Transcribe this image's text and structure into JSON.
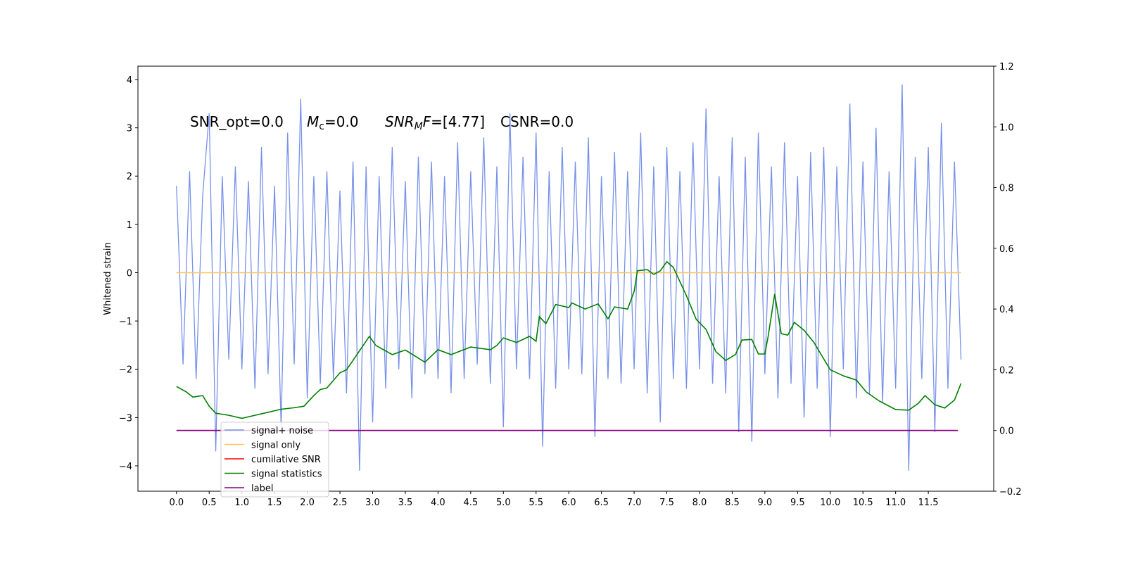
{
  "chart_data": {
    "type": "line",
    "ylabel": "Whitened strain",
    "annotations": [
      [
        "SNR_opt=0.0"
      ],
      [
        "M",
        "c",
        "=0.0"
      ],
      [
        "SNR",
        "M",
        "F",
        "=[4.77]"
      ],
      [
        "CSNR=0.0"
      ]
    ],
    "xlim": [
      -0.59,
      12.5
    ],
    "ylim": [
      -4.525,
      4.277
    ],
    "y2lim": [
      -0.2,
      1.2
    ],
    "xticks": [
      {
        "value": 0,
        "label": "0.0"
      },
      0.5,
      {
        "value": 1,
        "label": "1.0"
      },
      1.5,
      {
        "value": 2,
        "label": "2.0"
      },
      2.5,
      {
        "value": 3,
        "label": "3.0"
      },
      3.5,
      {
        "value": 4,
        "label": "4.0"
      },
      4.5,
      {
        "value": 5,
        "label": "5.0"
      },
      5.5,
      {
        "value": 6,
        "label": "6.0"
      },
      6.5,
      {
        "value": 7,
        "label": "7.0"
      },
      7.5,
      {
        "value": 8,
        "label": "8.0"
      },
      8.5,
      {
        "value": 9,
        "label": "9.0"
      },
      9.5,
      {
        "value": 10,
        "label": "10.0"
      },
      10.5,
      {
        "value": 11,
        "label": "11.0"
      },
      11.5
    ],
    "yticks": [
      {
        "value": -4,
        "label": "−4"
      },
      {
        "value": -3,
        "label": "−3"
      },
      {
        "value": -2,
        "label": "−2"
      },
      {
        "value": -1,
        "label": "−1"
      },
      0,
      1,
      2,
      3,
      4
    ],
    "y2ticks": [
      {
        "value": -0.2,
        "label": "−0.2"
      },
      {
        "value": 0,
        "label": "0.0"
      },
      0.2,
      0.4,
      0.6,
      0.8,
      {
        "value": 1,
        "label": "1.0"
      },
      1.2
    ],
    "legend": "lower left",
    "series": [
      {
        "name": "signal+ noise",
        "color": "#7891e8",
        "x": [
          0,
          0.1,
          0.2,
          0.3,
          0.4,
          0.5,
          0.6,
          0.7,
          0.8,
          0.9,
          1,
          1.1,
          1.2,
          1.3,
          1.4,
          1.5,
          1.6,
          1.7,
          1.8,
          1.9,
          2,
          2.1,
          2.2,
          2.3,
          2.4,
          2.5,
          2.6,
          2.7,
          2.8,
          2.9,
          3,
          3.1,
          3.2,
          3.3,
          3.4,
          3.5,
          3.6,
          3.7,
          3.8,
          3.9,
          4,
          4.1,
          4.2,
          4.3,
          4.4,
          4.5,
          4.6,
          4.7,
          4.8,
          4.9,
          5,
          5.1,
          5.2,
          5.3,
          5.4,
          5.5,
          5.6,
          5.7,
          5.8,
          5.9,
          6,
          6.1,
          6.2,
          6.3,
          6.4,
          6.5,
          6.6,
          6.7,
          6.8,
          6.9,
          7,
          7.1,
          7.2,
          7.3,
          7.4,
          7.5,
          7.6,
          7.7,
          7.8,
          7.9,
          8,
          8.1,
          8.2,
          8.3,
          8.4,
          8.5,
          8.6,
          8.7,
          8.8,
          8.9,
          9,
          9.1,
          9.2,
          9.3,
          9.4,
          9.5,
          9.6,
          9.7,
          9.8,
          9.9,
          10,
          10.1,
          10.2,
          10.3,
          10.4,
          10.5,
          10.6,
          10.7,
          10.8,
          10.9,
          11,
          11.1,
          11.2,
          11.3,
          11.4,
          11.5,
          11.6,
          11.7,
          11.8,
          11.9,
          12
        ],
        "values": [
          1.8,
          -1.9,
          2.1,
          -2.2,
          1.6,
          3.3,
          -3.7,
          2.0,
          -1.8,
          2.2,
          -2.0,
          1.9,
          -2.4,
          2.6,
          -2.1,
          1.8,
          -3.2,
          2.9,
          -1.9,
          3.6,
          -2.6,
          2.0,
          -2.3,
          2.1,
          -2.2,
          1.7,
          -2.5,
          2.3,
          -4.1,
          2.2,
          -3.1,
          2.0,
          -2.4,
          2.6,
          -2.0,
          1.9,
          -2.6,
          2.4,
          -2.1,
          2.3,
          -2.2,
          2.0,
          -2.5,
          2.7,
          -2.2,
          2.1,
          -1.9,
          2.8,
          -2.3,
          2.2,
          -3.2,
          3.3,
          -2.0,
          2.4,
          -2.2,
          2.9,
          -3.6,
          2.1,
          -2.4,
          2.6,
          -2.0,
          2.3,
          -2.1,
          2.8,
          -3.4,
          2.0,
          -2.2,
          2.5,
          -2.3,
          2.1,
          -2.0,
          2.9,
          -2.5,
          2.2,
          -3.1,
          2.6,
          -2.2,
          2.1,
          -2.4,
          2.7,
          -2.0,
          3.4,
          -2.3,
          2.0,
          -2.5,
          2.8,
          -3.3,
          2.4,
          -3.5,
          2.9,
          -2.1,
          2.2,
          -2.6,
          2.7,
          -2.3,
          2.0,
          -3.0,
          2.5,
          -2.4,
          2.6,
          -3.4,
          2.2,
          -2.0,
          3.5,
          -2.6,
          2.3,
          -2.5,
          3.0,
          -2.7,
          2.1,
          -2.4,
          3.9,
          -4.1,
          2.4,
          -2.2,
          2.6,
          -3.3,
          3.1,
          -2.4,
          2.3,
          -1.8
        ]
      },
      {
        "name": "signal only",
        "color": "#ffc35c",
        "x": [
          0,
          12
        ],
        "values": [
          0,
          0
        ]
      },
      {
        "name": "cumilative SNR",
        "color": "#ff0000",
        "axis": "y2",
        "x": [
          0,
          11.95
        ],
        "values": [
          0,
          0
        ]
      },
      {
        "name": "signal statistics",
        "color": "#008000",
        "axis": "y2",
        "x": [
          0,
          0.15,
          0.25,
          0.4,
          0.5,
          0.6,
          0.8,
          1,
          1.2,
          1.4,
          1.6,
          1.8,
          1.95,
          2.1,
          2.2,
          2.3,
          2.5,
          2.6,
          2.7,
          2.95,
          3.05,
          3.3,
          3.5,
          3.8,
          4,
          4.2,
          4.5,
          4.8,
          4.9,
          5,
          5.2,
          5.4,
          5.5,
          5.55,
          5.65,
          5.8,
          6,
          6.05,
          6.25,
          6.45,
          6.6,
          6.7,
          6.9,
          7,
          7.05,
          7.2,
          7.3,
          7.4,
          7.5,
          7.6,
          7.8,
          7.95,
          8.1,
          8.25,
          8.4,
          8.55,
          8.65,
          8.8,
          8.9,
          9,
          9.05,
          9.15,
          9.25,
          9.35,
          9.45,
          9.6,
          9.75,
          10,
          10.2,
          10.4,
          10.55,
          10.75,
          11,
          11.2,
          11.35,
          11.45,
          11.6,
          11.75,
          11.9,
          12
        ],
        "values": [
          0.145,
          0.127,
          0.11,
          0.115,
          0.08,
          0.057,
          0.05,
          0.04,
          0.05,
          0.06,
          0.07,
          0.075,
          0.08,
          0.115,
          0.135,
          0.14,
          0.19,
          0.2,
          0.231,
          0.31,
          0.28,
          0.25,
          0.265,
          0.225,
          0.266,
          0.25,
          0.275,
          0.266,
          0.28,
          0.305,
          0.29,
          0.31,
          0.294,
          0.375,
          0.352,
          0.415,
          0.405,
          0.42,
          0.4,
          0.417,
          0.368,
          0.407,
          0.4,
          0.458,
          0.526,
          0.53,
          0.514,
          0.526,
          0.556,
          0.537,
          0.444,
          0.366,
          0.333,
          0.26,
          0.231,
          0.25,
          0.298,
          0.3,
          0.252,
          0.252,
          0.31,
          0.45,
          0.319,
          0.314,
          0.356,
          0.33,
          0.29,
          0.2,
          0.18,
          0.166,
          0.127,
          0.097,
          0.069,
          0.067,
          0.09,
          0.115,
          0.085,
          0.074,
          0.1,
          0.155
        ]
      },
      {
        "name": "label",
        "color": "#800080",
        "axis": "y2",
        "x": [
          0,
          11.95
        ],
        "values": [
          0,
          0
        ]
      }
    ]
  }
}
